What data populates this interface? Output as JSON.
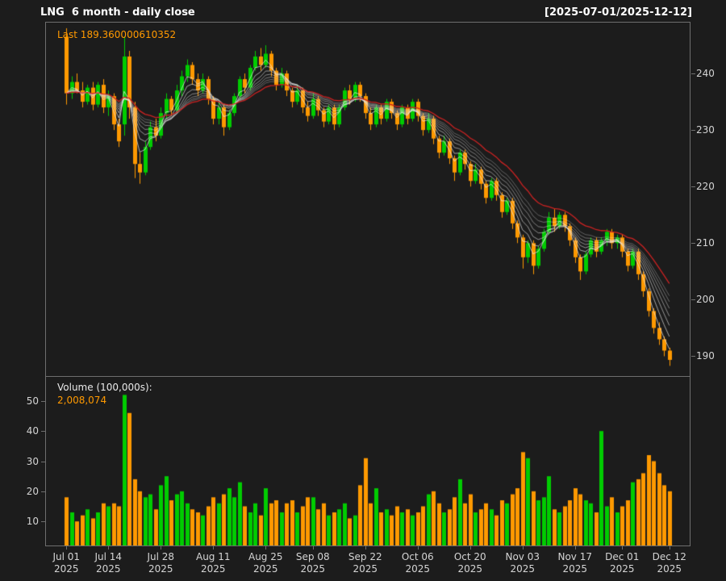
{
  "header": {
    "title": "LNG  6 month - daily close",
    "date_range": "[2025-07-01/2025-12-12]"
  },
  "chart_data": {
    "type": "candlestick",
    "symbol": "LNG",
    "last_label": "Last 189.360000610352",
    "volume_title": "Volume (100,000s):",
    "volume_value": "2,008,074",
    "colors": {
      "background": "#1C1C1C",
      "up": "#00CC00",
      "down": "#FF9900",
      "ma_fast": "#EBEBEB",
      "ma_slow": "#CC2222",
      "axis_text": "#D4D4D4",
      "border": "#6E6E6E",
      "title_text": "#FFFFFF",
      "accent_orange": "#FF9900"
    },
    "price_axis": {
      "ticks": [
        240,
        230,
        220,
        210,
        200,
        190
      ],
      "min": 186.5,
      "max": 249
    },
    "volume_axis": {
      "ticks": [
        50,
        40,
        30,
        20,
        10
      ],
      "min": 2,
      "max": 58
    },
    "x_axis": {
      "ticks": [
        {
          "label": "Jul 01",
          "year": "2025",
          "index": 0
        },
        {
          "label": "Jul 14",
          "year": "2025",
          "index": 8
        },
        {
          "label": "Jul 28",
          "year": "2025",
          "index": 18
        },
        {
          "label": "Aug 11",
          "year": "2025",
          "index": 28
        },
        {
          "label": "Aug 25",
          "year": "2025",
          "index": 38
        },
        {
          "label": "Sep 08",
          "year": "2025",
          "index": 47
        },
        {
          "label": "Sep 22",
          "year": "2025",
          "index": 57
        },
        {
          "label": "Oct 06",
          "year": "2025",
          "index": 67
        },
        {
          "label": "Oct 20",
          "year": "2025",
          "index": 77
        },
        {
          "label": "Nov 03",
          "year": "2025",
          "index": 87
        },
        {
          "label": "Nov 17",
          "year": "2025",
          "index": 97
        },
        {
          "label": "Dec 01",
          "year": "2025",
          "index": 106
        },
        {
          "label": "Dec 12",
          "year": "2025",
          "index": 115
        }
      ]
    },
    "ma": {
      "fast_periods": [
        3,
        5,
        7,
        9,
        11,
        13,
        15
      ],
      "slow_period": 20
    },
    "candles": [
      [
        246.5,
        248.0,
        234.5,
        236.5,
        18
      ],
      [
        236.5,
        239.5,
        235.5,
        238.5,
        13
      ],
      [
        238.5,
        240.0,
        236.5,
        237.0,
        10
      ],
      [
        237.0,
        238.5,
        234.0,
        235.0,
        12
      ],
      [
        235.0,
        238.0,
        234.5,
        237.5,
        14
      ],
      [
        237.5,
        238.5,
        233.5,
        234.5,
        11
      ],
      [
        234.5,
        238.5,
        234.0,
        238.0,
        13
      ],
      [
        238.0,
        239.0,
        233.0,
        234.0,
        16
      ],
      [
        234.0,
        237.0,
        232.5,
        236.0,
        15
      ],
      [
        236.0,
        236.5,
        230.0,
        231.0,
        16
      ],
      [
        231.0,
        232.0,
        227.0,
        228.0,
        15
      ],
      [
        231.0,
        246.5,
        229.0,
        243.0,
        52
      ],
      [
        243.0,
        244.0,
        232.0,
        234.0,
        46
      ],
      [
        234.0,
        235.0,
        221.5,
        224.0,
        24
      ],
      [
        224.0,
        226.0,
        220.5,
        222.5,
        20
      ],
      [
        222.5,
        228.0,
        222.0,
        227.0,
        18
      ],
      [
        227.0,
        231.5,
        226.5,
        230.5,
        19
      ],
      [
        230.5,
        232.0,
        228.0,
        229.0,
        14
      ],
      [
        229.0,
        234.0,
        228.5,
        233.0,
        22
      ],
      [
        233.0,
        236.5,
        232.0,
        235.5,
        25
      ],
      [
        235.5,
        236.0,
        232.5,
        233.5,
        17
      ],
      [
        233.5,
        238.0,
        233.0,
        237.0,
        19
      ],
      [
        237.0,
        240.5,
        236.0,
        239.5,
        20
      ],
      [
        239.5,
        242.5,
        238.5,
        241.5,
        16
      ],
      [
        241.5,
        242.0,
        238.0,
        239.0,
        14
      ],
      [
        239.0,
        240.0,
        236.0,
        237.0,
        13
      ],
      [
        237.0,
        240.0,
        236.5,
        239.0,
        12
      ],
      [
        239.0,
        239.5,
        234.5,
        235.5,
        15
      ],
      [
        235.5,
        236.0,
        231.0,
        232.0,
        18
      ],
      [
        232.0,
        235.0,
        231.0,
        234.0,
        16
      ],
      [
        234.0,
        234.5,
        229.0,
        230.5,
        19
      ],
      [
        230.5,
        233.5,
        230.0,
        233.0,
        21
      ],
      [
        233.0,
        236.5,
        232.5,
        236.0,
        18
      ],
      [
        236.0,
        239.5,
        235.5,
        239.0,
        23
      ],
      [
        239.0,
        240.0,
        236.5,
        237.5,
        15
      ],
      [
        237.5,
        241.5,
        237.0,
        241.0,
        13
      ],
      [
        241.0,
        244.0,
        240.5,
        243.0,
        16
      ],
      [
        243.0,
        244.5,
        240.5,
        241.5,
        12
      ],
      [
        241.5,
        245.0,
        241.0,
        243.5,
        21
      ],
      [
        243.5,
        244.0,
        239.5,
        240.5,
        16
      ],
      [
        240.5,
        241.0,
        237.0,
        238.0,
        17
      ],
      [
        238.0,
        241.0,
        237.5,
        240.0,
        13
      ],
      [
        240.0,
        240.5,
        236.0,
        237.0,
        16
      ],
      [
        237.0,
        237.5,
        234.0,
        235.0,
        17
      ],
      [
        235.0,
        238.0,
        234.5,
        237.0,
        13
      ],
      [
        237.0,
        237.5,
        233.0,
        234.0,
        15
      ],
      [
        234.0,
        235.0,
        231.5,
        232.5,
        18
      ],
      [
        232.5,
        236.5,
        232.0,
        235.5,
        18
      ],
      [
        235.5,
        236.0,
        232.5,
        233.5,
        14
      ],
      [
        233.5,
        234.0,
        230.5,
        231.5,
        16
      ],
      [
        231.5,
        234.5,
        231.0,
        234.0,
        12
      ],
      [
        234.0,
        234.5,
        230.0,
        231.0,
        13
      ],
      [
        231.0,
        234.5,
        230.5,
        234.0,
        14
      ],
      [
        234.0,
        237.5,
        233.5,
        237.0,
        16
      ],
      [
        237.0,
        238.0,
        234.5,
        235.5,
        11
      ],
      [
        235.5,
        238.5,
        235.0,
        238.0,
        12
      ],
      [
        238.0,
        238.5,
        235.0,
        236.0,
        22
      ],
      [
        236.0,
        236.5,
        232.0,
        233.0,
        31
      ],
      [
        233.0,
        234.0,
        230.0,
        231.0,
        16
      ],
      [
        231.0,
        234.5,
        230.5,
        234.0,
        21
      ],
      [
        234.0,
        234.5,
        231.0,
        232.0,
        13
      ],
      [
        232.0,
        235.5,
        231.5,
        235.0,
        14
      ],
      [
        235.0,
        235.5,
        232.0,
        233.0,
        12
      ],
      [
        233.0,
        233.5,
        230.0,
        231.0,
        15
      ],
      [
        231.0,
        234.5,
        230.5,
        234.0,
        13
      ],
      [
        234.0,
        234.5,
        231.0,
        232.0,
        14
      ],
      [
        232.0,
        235.5,
        231.5,
        235.0,
        12
      ],
      [
        235.0,
        235.5,
        231.5,
        232.5,
        13
      ],
      [
        232.5,
        233.0,
        229.0,
        230.0,
        15
      ],
      [
        230.0,
        233.0,
        229.5,
        232.0,
        19
      ],
      [
        232.0,
        232.5,
        227.5,
        228.5,
        20
      ],
      [
        228.5,
        229.0,
        225.0,
        226.0,
        16
      ],
      [
        226.0,
        229.0,
        225.5,
        228.0,
        13
      ],
      [
        228.0,
        228.5,
        224.0,
        225.0,
        14
      ],
      [
        225.0,
        225.5,
        221.0,
        222.5,
        18
      ],
      [
        222.5,
        226.5,
        222.0,
        226.0,
        24
      ],
      [
        226.0,
        226.5,
        223.0,
        224.0,
        16
      ],
      [
        224.0,
        224.5,
        220.0,
        221.0,
        19
      ],
      [
        221.0,
        224.0,
        220.5,
        223.0,
        13
      ],
      [
        223.0,
        223.5,
        219.5,
        220.5,
        14
      ],
      [
        220.5,
        221.0,
        217.0,
        218.0,
        16
      ],
      [
        218.0,
        221.5,
        217.5,
        221.0,
        14
      ],
      [
        221.0,
        221.5,
        217.5,
        218.5,
        12
      ],
      [
        218.5,
        219.0,
        214.5,
        215.5,
        17
      ],
      [
        215.5,
        218.0,
        215.0,
        217.5,
        16
      ],
      [
        217.5,
        218.0,
        212.5,
        213.5,
        19
      ],
      [
        213.5,
        214.0,
        210.0,
        211.0,
        21
      ],
      [
        211.0,
        211.5,
        205.5,
        207.5,
        33
      ],
      [
        207.5,
        210.5,
        206.5,
        210.0,
        31
      ],
      [
        210.0,
        210.5,
        204.5,
        206.0,
        20
      ],
      [
        206.0,
        209.5,
        205.5,
        209.0,
        17
      ],
      [
        209.0,
        212.5,
        208.5,
        212.0,
        18
      ],
      [
        212.0,
        215.5,
        211.5,
        214.5,
        25
      ],
      [
        214.5,
        216.0,
        212.0,
        213.0,
        14
      ],
      [
        213.0,
        215.5,
        212.5,
        215.0,
        13
      ],
      [
        215.0,
        215.5,
        212.0,
        213.0,
        15
      ],
      [
        213.0,
        213.5,
        209.5,
        210.5,
        17
      ],
      [
        210.5,
        211.0,
        206.5,
        207.5,
        21
      ],
      [
        207.5,
        208.0,
        203.5,
        205.0,
        19
      ],
      [
        205.0,
        208.5,
        204.5,
        208.0,
        17
      ],
      [
        208.0,
        211.0,
        207.5,
        210.5,
        16
      ],
      [
        210.5,
        211.0,
        207.5,
        208.5,
        13
      ],
      [
        208.5,
        211.0,
        208.0,
        210.5,
        40
      ],
      [
        210.5,
        212.5,
        209.5,
        212.0,
        15
      ],
      [
        212.0,
        212.5,
        209.0,
        210.0,
        18
      ],
      [
        210.0,
        211.5,
        209.0,
        211.0,
        13
      ],
      [
        211.0,
        211.5,
        207.5,
        208.5,
        15
      ],
      [
        208.5,
        209.0,
        205.0,
        206.0,
        17
      ],
      [
        206.0,
        209.0,
        205.5,
        208.5,
        23
      ],
      [
        208.5,
        209.0,
        203.5,
        204.5,
        24
      ],
      [
        204.5,
        205.0,
        200.5,
        201.5,
        26
      ],
      [
        201.5,
        202.0,
        197.0,
        198.0,
        32
      ],
      [
        198.0,
        198.5,
        194.0,
        195.0,
        30
      ],
      [
        195.0,
        196.0,
        192.0,
        193.0,
        26
      ],
      [
        193.0,
        193.5,
        190.0,
        191.0,
        22
      ],
      [
        191.0,
        191.5,
        188.3,
        189.36,
        20
      ]
    ]
  }
}
